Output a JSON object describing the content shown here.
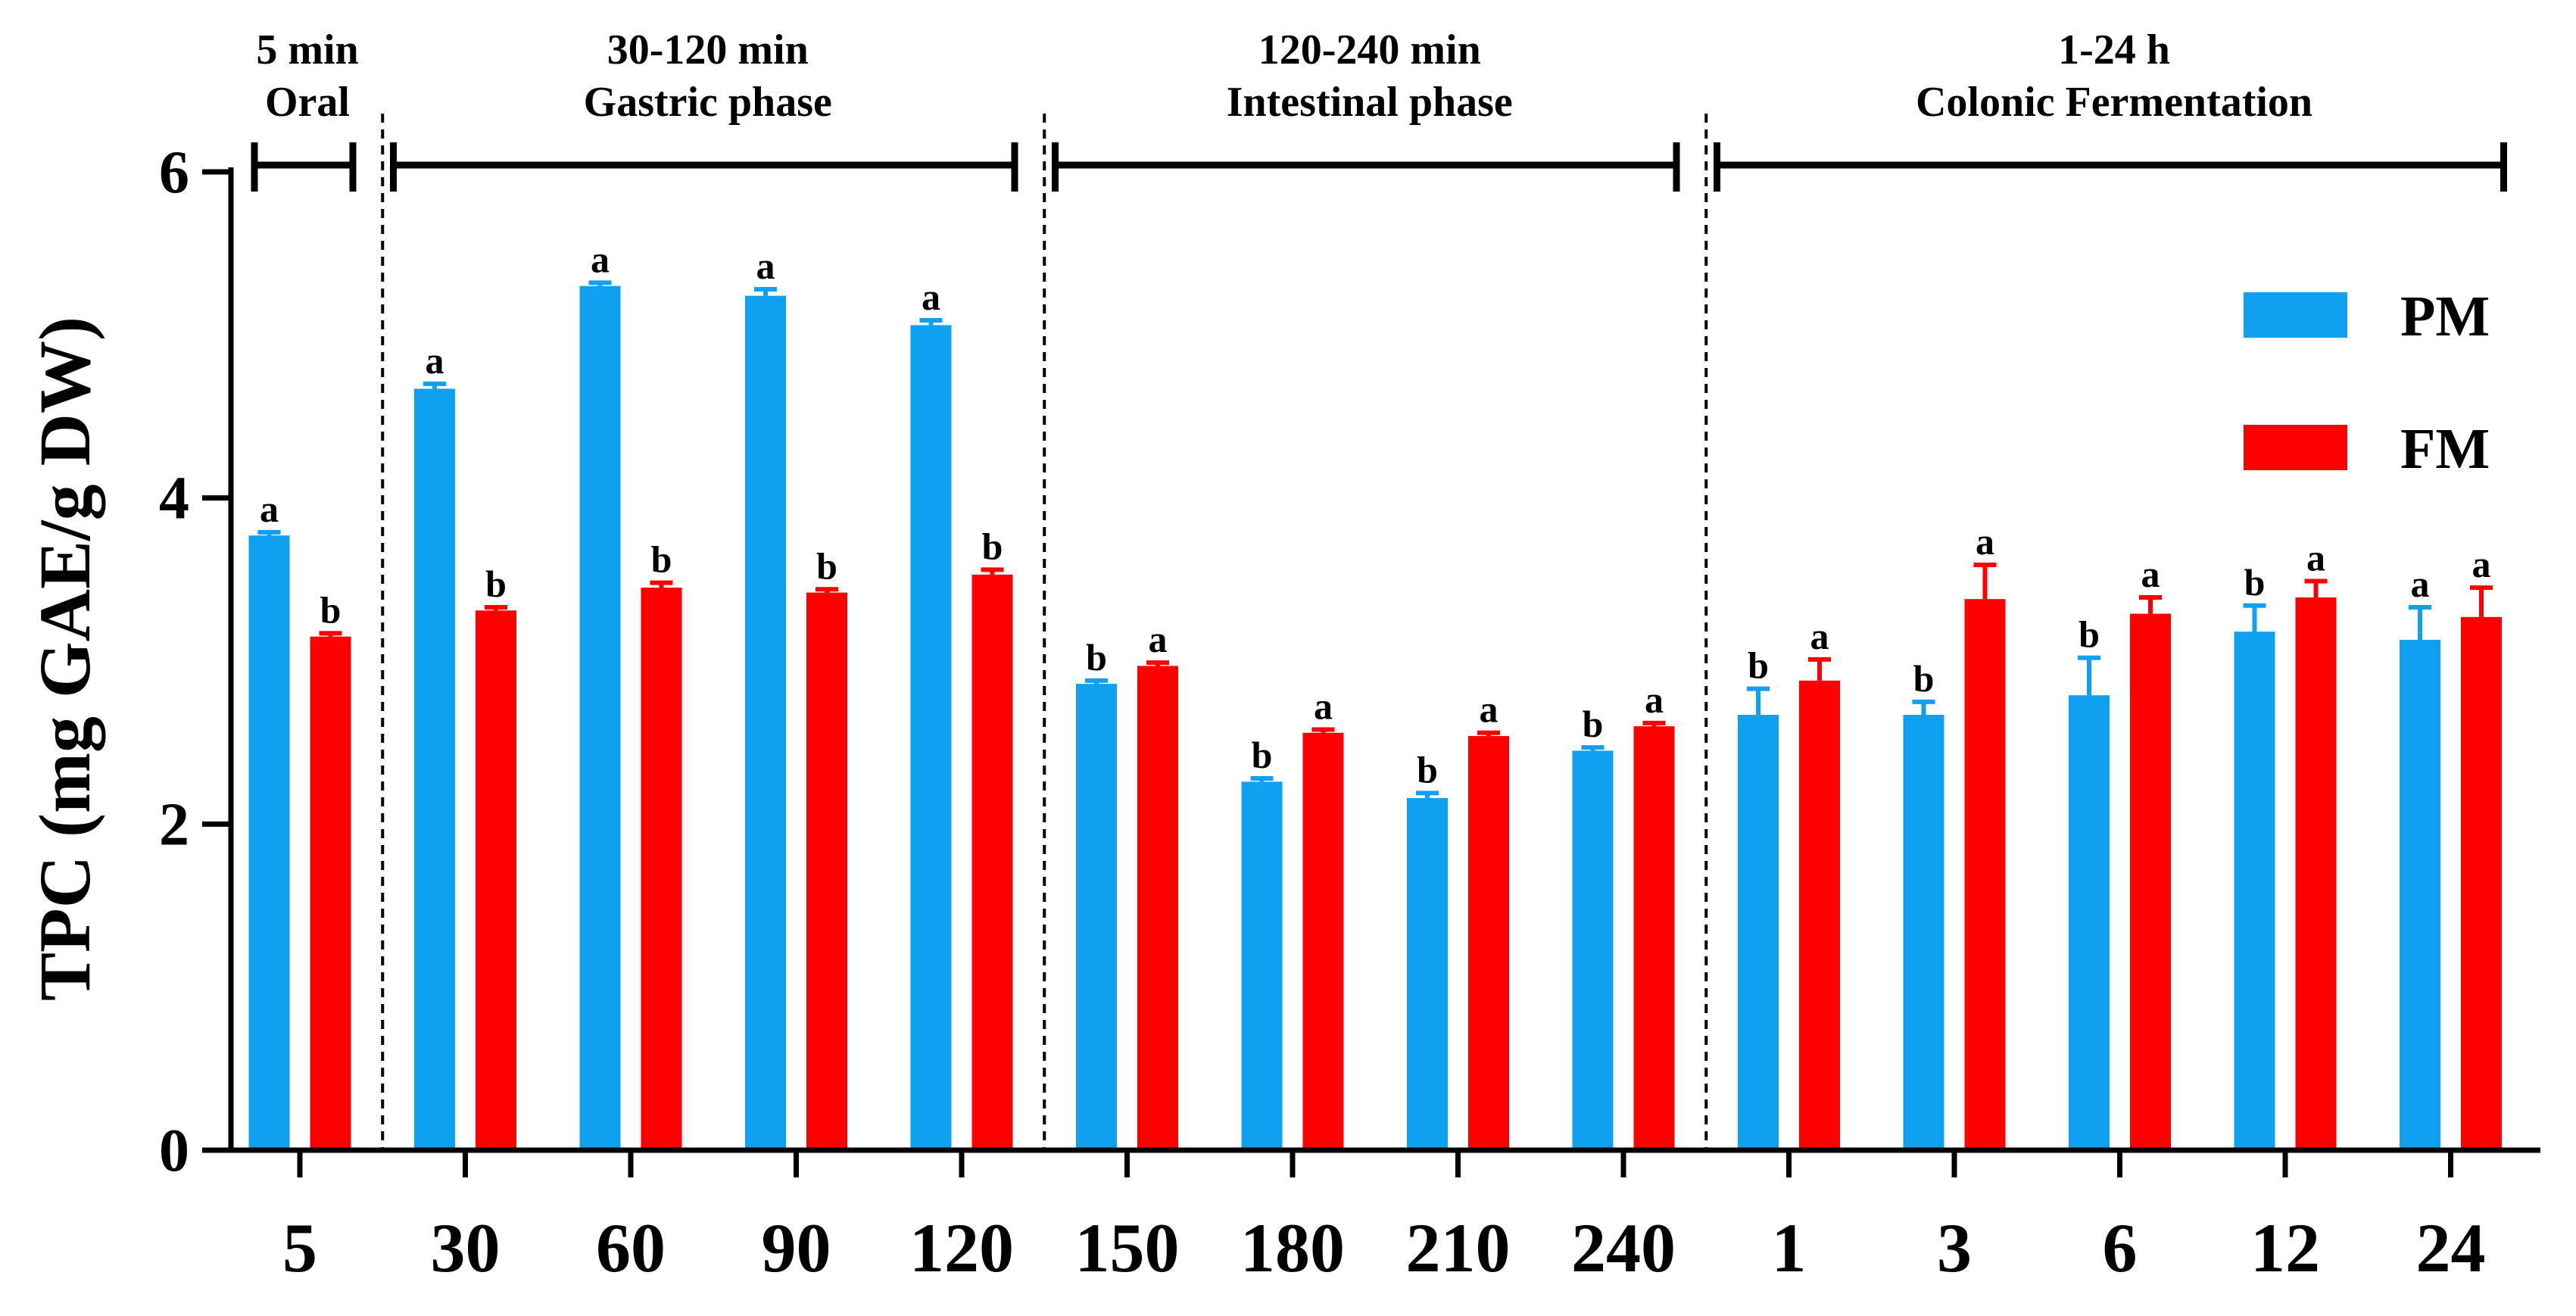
{
  "chart_data": {
    "type": "bar",
    "title": "",
    "xlabel": "",
    "ylabel": "TPC (mg GAE/g DW)",
    "ylim": [
      0,
      6
    ],
    "yticks": [
      "0",
      "2",
      "4",
      "6"
    ],
    "categories": [
      "5",
      "30",
      "60",
      "90",
      "120",
      "150",
      "180",
      "210",
      "240",
      "1",
      "3",
      "6",
      "12",
      "24"
    ],
    "series": [
      {
        "name": "PM",
        "color": "#0fa0f0",
        "values": [
          3.77,
          4.67,
          5.3,
          5.24,
          5.06,
          2.86,
          2.26,
          2.16,
          2.45,
          2.67,
          2.67,
          2.79,
          3.18,
          3.13
        ],
        "errors": [
          0.02,
          0.03,
          0.02,
          0.04,
          0.03,
          0.02,
          0.02,
          0.03,
          0.02,
          0.16,
          0.08,
          0.23,
          0.16,
          0.2
        ],
        "letters": [
          "a",
          "a",
          "a",
          "a",
          "a",
          "b",
          "b",
          "b",
          "b",
          "b",
          "b",
          "b",
          "b",
          "a"
        ]
      },
      {
        "name": "FM",
        "color": "#ff0000",
        "values": [
          3.15,
          3.31,
          3.45,
          3.42,
          3.53,
          2.97,
          2.56,
          2.54,
          2.6,
          2.88,
          3.38,
          3.29,
          3.39,
          3.27
        ],
        "errors": [
          0.02,
          0.02,
          0.03,
          0.02,
          0.03,
          0.02,
          0.02,
          0.02,
          0.02,
          0.13,
          0.21,
          0.1,
          0.1,
          0.18
        ],
        "letters": [
          "b",
          "b",
          "b",
          "b",
          "b",
          "a",
          "a",
          "a",
          "a",
          "a",
          "a",
          "a",
          "a",
          "a"
        ]
      }
    ],
    "phases": [
      {
        "line1": "5 min",
        "line2": "Oral",
        "from": 0,
        "to": 0
      },
      {
        "line1": "30-120 min",
        "line2": "Gastric phase",
        "from": 1,
        "to": 4
      },
      {
        "line1": "120-240 min",
        "line2": "Intestinal phase",
        "from": 5,
        "to": 8
      },
      {
        "line1": "1-24 h",
        "line2": "Colonic Fermentation",
        "from": 9,
        "to": 13
      }
    ],
    "legend_position": "top-right",
    "grid": false
  }
}
